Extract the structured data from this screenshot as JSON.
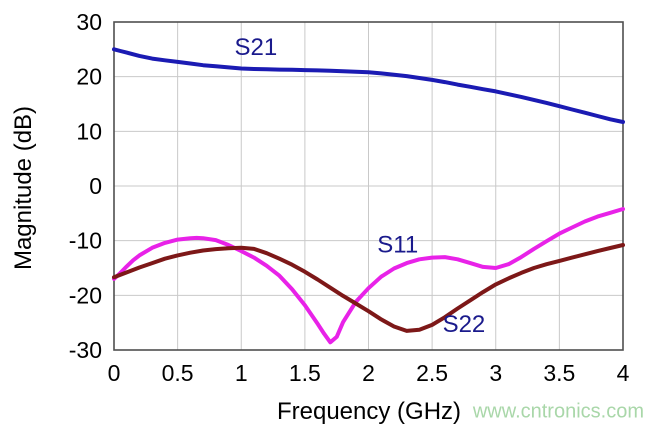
{
  "watermark": {
    "text": "www.cntronics.com",
    "color": "#a9d7a9"
  },
  "chart_data": {
    "type": "line",
    "title": "",
    "xlabel": "Frequency (GHz)",
    "ylabel": "Magnitude (dB)",
    "xlim": [
      0,
      4
    ],
    "ylim": [
      -30,
      30
    ],
    "grid": true,
    "legend": "inline-curve-labels",
    "x_ticks": [
      {
        "value": 0,
        "label": "0"
      },
      {
        "value": 0.5,
        "label": "0.5"
      },
      {
        "value": 1,
        "label": "1"
      },
      {
        "value": 1.5,
        "label": "1.5"
      },
      {
        "value": 2,
        "label": "2"
      },
      {
        "value": 2.5,
        "label": "2.5"
      },
      {
        "value": 3,
        "label": "3"
      },
      {
        "value": 3.5,
        "label": "3.5"
      },
      {
        "value": 4,
        "label": "4"
      }
    ],
    "y_ticks": [
      {
        "value": 30,
        "label": "30"
      },
      {
        "value": 20,
        "label": "20"
      },
      {
        "value": 10,
        "label": "10"
      },
      {
        "value": 0,
        "label": "0"
      },
      {
        "value": -10,
        "label": "-10"
      },
      {
        "value": -20,
        "label": "-20"
      },
      {
        "value": -30,
        "label": "-30"
      }
    ],
    "colors": {
      "grid": "#c9c9c9",
      "axis_border": "#4f4f4f",
      "tick_text": "#000000",
      "series_label_text": "#1a1a8c"
    },
    "series": [
      {
        "name": "S21",
        "color": "#1b1bb3",
        "label": {
          "text": "S21",
          "x": 1.115,
          "y": 25.4
        },
        "points": [
          [
            0,
            25.0
          ],
          [
            0.05,
            24.7
          ],
          [
            0.1,
            24.4
          ],
          [
            0.2,
            23.8
          ],
          [
            0.3,
            23.3
          ],
          [
            0.4,
            23.0
          ],
          [
            0.5,
            22.7
          ],
          [
            0.6,
            22.4
          ],
          [
            0.7,
            22.1
          ],
          [
            0.8,
            21.9
          ],
          [
            0.9,
            21.7
          ],
          [
            1.0,
            21.5
          ],
          [
            1.1,
            21.4
          ],
          [
            1.2,
            21.35
          ],
          [
            1.3,
            21.3
          ],
          [
            1.4,
            21.25
          ],
          [
            1.5,
            21.2
          ],
          [
            1.6,
            21.15
          ],
          [
            1.7,
            21.1
          ],
          [
            1.8,
            21.0
          ],
          [
            1.9,
            20.9
          ],
          [
            2.0,
            20.8
          ],
          [
            2.1,
            20.6
          ],
          [
            2.2,
            20.35
          ],
          [
            2.3,
            20.1
          ],
          [
            2.4,
            19.75
          ],
          [
            2.5,
            19.4
          ],
          [
            2.6,
            19.0
          ],
          [
            2.7,
            18.55
          ],
          [
            2.8,
            18.15
          ],
          [
            2.9,
            17.7
          ],
          [
            3.0,
            17.3
          ],
          [
            3.1,
            16.8
          ],
          [
            3.2,
            16.3
          ],
          [
            3.3,
            15.75
          ],
          [
            3.4,
            15.2
          ],
          [
            3.5,
            14.6
          ],
          [
            3.6,
            14.0
          ],
          [
            3.7,
            13.4
          ],
          [
            3.8,
            12.8
          ],
          [
            3.9,
            12.2
          ],
          [
            4.0,
            11.7
          ]
        ]
      },
      {
        "name": "S11",
        "color": "#e822e8",
        "label": {
          "text": "S11",
          "x": 2.23,
          "y": -10.7
        },
        "points": [
          [
            0,
            -17.0
          ],
          [
            0.05,
            -15.9
          ],
          [
            0.1,
            -14.7
          ],
          [
            0.15,
            -13.6
          ],
          [
            0.2,
            -12.7
          ],
          [
            0.3,
            -11.3
          ],
          [
            0.4,
            -10.4
          ],
          [
            0.5,
            -9.8
          ],
          [
            0.6,
            -9.55
          ],
          [
            0.65,
            -9.5
          ],
          [
            0.7,
            -9.55
          ],
          [
            0.8,
            -9.9
          ],
          [
            0.9,
            -10.8
          ],
          [
            1.0,
            -11.9
          ],
          [
            1.1,
            -13.1
          ],
          [
            1.2,
            -14.6
          ],
          [
            1.3,
            -16.4
          ],
          [
            1.4,
            -18.9
          ],
          [
            1.5,
            -21.8
          ],
          [
            1.6,
            -25.2
          ],
          [
            1.65,
            -27.0
          ],
          [
            1.7,
            -28.6
          ],
          [
            1.75,
            -27.6
          ],
          [
            1.8,
            -24.9
          ],
          [
            1.9,
            -21.2
          ],
          [
            2.0,
            -18.7
          ],
          [
            2.1,
            -16.6
          ],
          [
            2.2,
            -15.1
          ],
          [
            2.3,
            -14.1
          ],
          [
            2.4,
            -13.4
          ],
          [
            2.5,
            -13.1
          ],
          [
            2.6,
            -13.0
          ],
          [
            2.7,
            -13.4
          ],
          [
            2.8,
            -14.1
          ],
          [
            2.9,
            -14.8
          ],
          [
            3.0,
            -15.0
          ],
          [
            3.1,
            -14.3
          ],
          [
            3.2,
            -13.0
          ],
          [
            3.3,
            -11.5
          ],
          [
            3.4,
            -10.1
          ],
          [
            3.5,
            -8.7
          ],
          [
            3.6,
            -7.6
          ],
          [
            3.7,
            -6.5
          ],
          [
            3.8,
            -5.6
          ],
          [
            3.9,
            -4.9
          ],
          [
            4.0,
            -4.2
          ]
        ]
      },
      {
        "name": "S22",
        "color": "#7d1818",
        "label": {
          "text": "S22",
          "x": 2.75,
          "y": -25.2
        },
        "points": [
          [
            0,
            -16.7
          ],
          [
            0.1,
            -15.8
          ],
          [
            0.2,
            -14.9
          ],
          [
            0.3,
            -14.1
          ],
          [
            0.4,
            -13.3
          ],
          [
            0.5,
            -12.7
          ],
          [
            0.6,
            -12.2
          ],
          [
            0.7,
            -11.8
          ],
          [
            0.8,
            -11.55
          ],
          [
            0.9,
            -11.4
          ],
          [
            1.0,
            -11.3
          ],
          [
            1.1,
            -11.5
          ],
          [
            1.2,
            -12.3
          ],
          [
            1.3,
            -13.3
          ],
          [
            1.4,
            -14.4
          ],
          [
            1.5,
            -15.7
          ],
          [
            1.6,
            -17.1
          ],
          [
            1.7,
            -18.6
          ],
          [
            1.8,
            -20.1
          ],
          [
            1.9,
            -21.5
          ],
          [
            2.0,
            -22.9
          ],
          [
            2.1,
            -24.4
          ],
          [
            2.2,
            -25.7
          ],
          [
            2.3,
            -26.5
          ],
          [
            2.4,
            -26.3
          ],
          [
            2.5,
            -25.4
          ],
          [
            2.6,
            -24.0
          ],
          [
            2.7,
            -22.4
          ],
          [
            2.8,
            -20.9
          ],
          [
            2.9,
            -19.4
          ],
          [
            3.0,
            -18.0
          ],
          [
            3.1,
            -16.9
          ],
          [
            3.2,
            -15.9
          ],
          [
            3.3,
            -15.0
          ],
          [
            3.4,
            -14.3
          ],
          [
            3.5,
            -13.7
          ],
          [
            3.6,
            -13.1
          ],
          [
            3.7,
            -12.5
          ],
          [
            3.8,
            -11.9
          ],
          [
            3.9,
            -11.35
          ],
          [
            4.0,
            -10.8
          ]
        ]
      }
    ]
  }
}
